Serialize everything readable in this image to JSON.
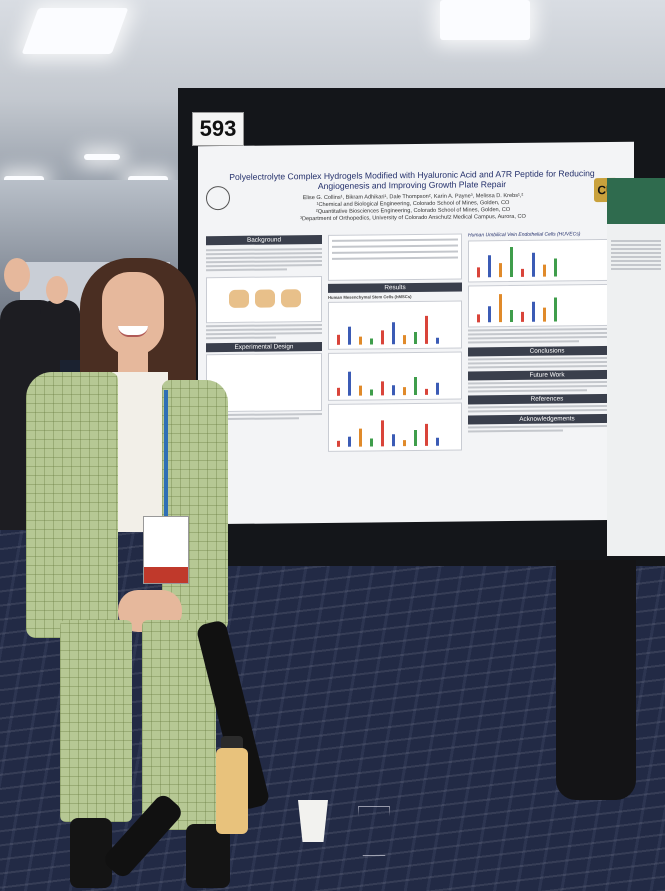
{
  "scene": {
    "board_number": "593"
  },
  "poster": {
    "title": "Polyelectrolyte Complex Hydrogels Modified with Hyaluronic Acid and A7R Peptide for Reducing Angiogenesis and Improving Growth Plate Repair",
    "authors": "Elise G. Collins¹, Bikram Adhikari¹, Dale Thompson², Karin A. Payne³, Melissa D. Krebs¹,²",
    "affiliation_1": "¹Chemical and Biological Engineering, Colorado School of Mines, Golden, CO",
    "affiliation_2": "²Quantitative Biosciences Engineering, Colorado School of Mines, Golden, CO",
    "affiliation_3": "³Department of Orthopedics, University of Colorado Anschutz Medical Campus, Aurora, CO",
    "sections": {
      "background": "Background",
      "experimental_design": "Experimental Design",
      "results": "Results",
      "conclusions": "Conclusions",
      "future_work": "Future Work",
      "references": "References",
      "acknowledgements": "Acknowledgements"
    },
    "subheads": {
      "huvec": "Human Umbilical Vein Endothelial Cells (HUVECs)",
      "hmsc": "Human Mesenchymal Stem Cells (hMSCs)"
    },
    "logo_text": "CU"
  },
  "colors": {
    "poster_title": "#24306b",
    "section_header": "#3a3f4c",
    "side_poster_green": "#2f6b4e",
    "bar_red": "#d9443a",
    "bar_blue": "#3b5bb5",
    "bar_orange": "#e08a2a",
    "bar_green": "#3f9d4b",
    "jacket": "#b6c894"
  }
}
